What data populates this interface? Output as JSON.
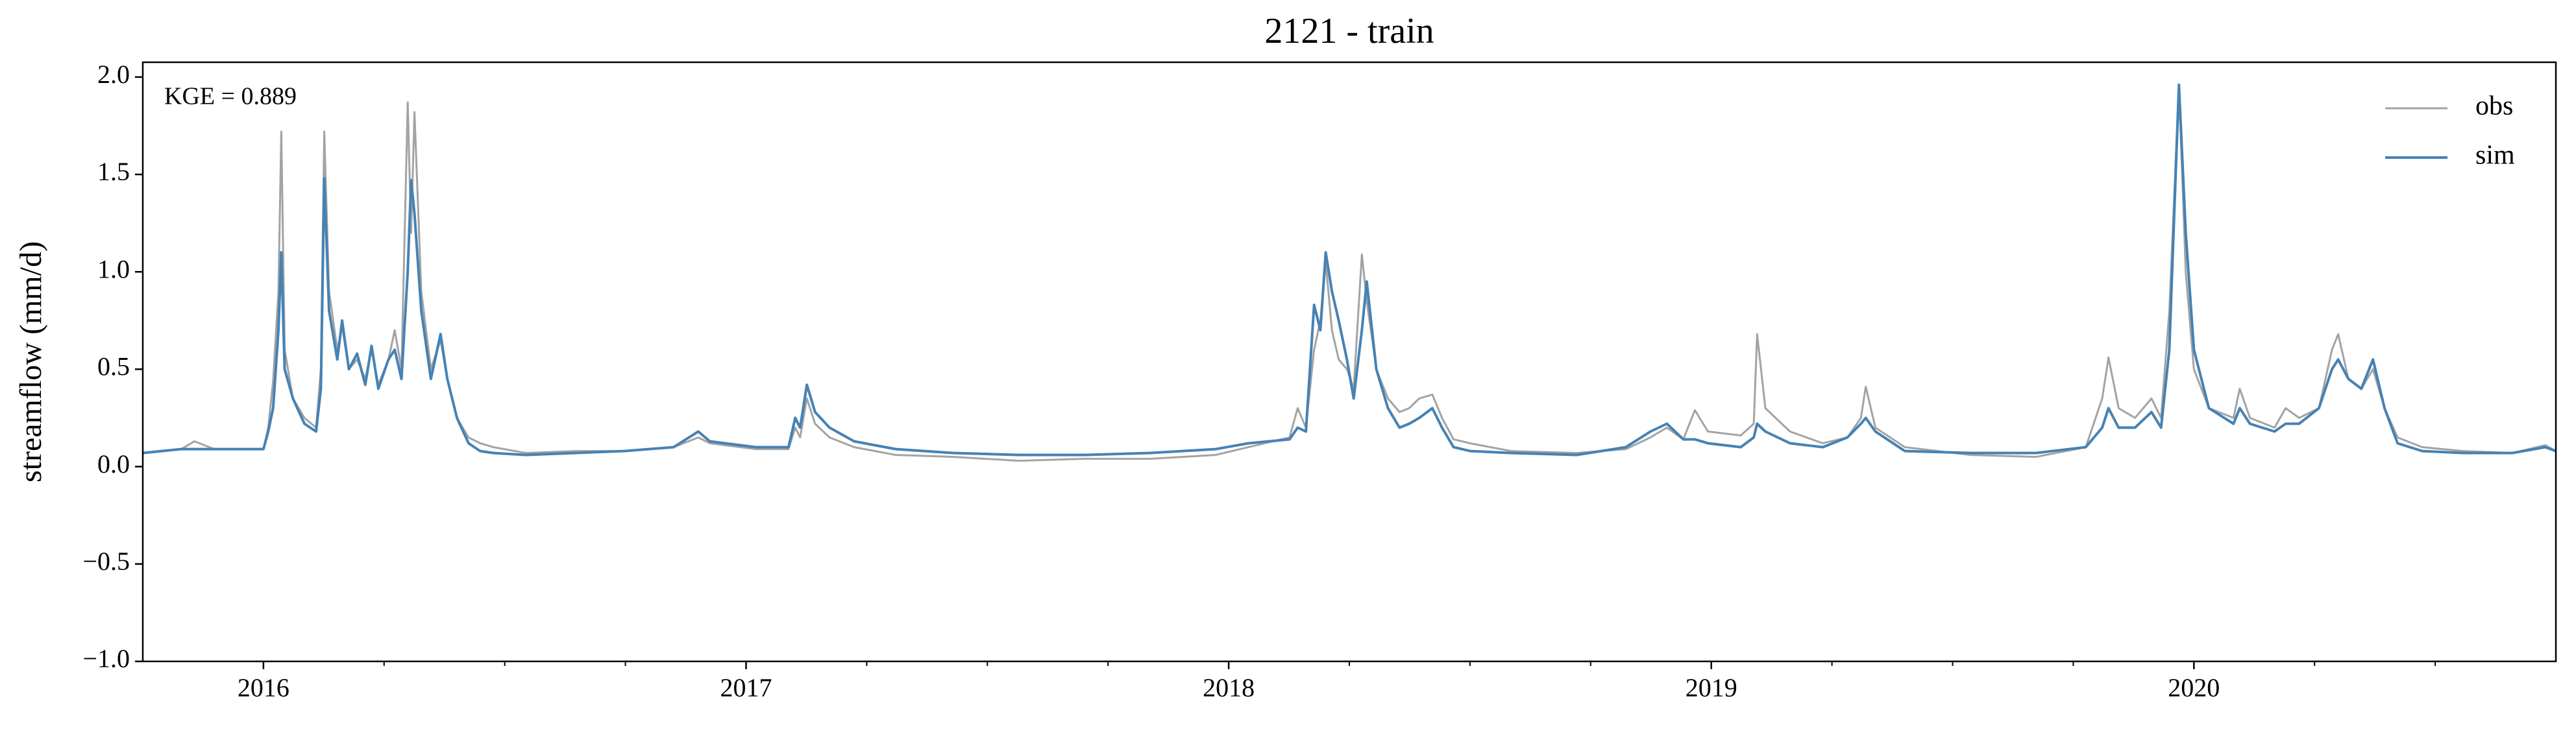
{
  "chart_data": {
    "type": "line",
    "title": "2121 - train",
    "ylabel": "streamflow (mm/d)",
    "annotation": "KGE = 0.889",
    "legend": "upper right",
    "grid": false,
    "xlim": [
      2015.75,
      2020.75
    ],
    "xticks": [
      2016,
      2017,
      2018,
      2019,
      2020
    ],
    "xminorticks": [
      2016.25,
      2016.5,
      2016.75,
      2017.25,
      2017.5,
      2017.75,
      2018.25,
      2018.5,
      2018.75,
      2019.25,
      2019.5,
      2019.75,
      2020.25,
      2020.5
    ],
    "ylim": [
      -1.0,
      2.076
    ],
    "yticks": [
      {
        "value": -1.0,
        "label": "−1.0"
      },
      {
        "value": -0.5,
        "label": "−0.5"
      },
      {
        "value": 0,
        "label": "0.0"
      },
      {
        "value": 0.5,
        "label": "0.5"
      },
      {
        "value": 1.0,
        "label": "1.0"
      },
      {
        "value": 1.5,
        "label": "1.5"
      },
      {
        "value": 2.0,
        "label": "2.0"
      }
    ],
    "x": [
      2015.75,
      2015.83,
      2015.857,
      2015.898,
      2015.966,
      2016.0,
      2016.01,
      2016.02,
      2016.031,
      2016.037,
      2016.044,
      2016.061,
      2016.085,
      2016.109,
      2016.119,
      2016.126,
      2016.136,
      2016.153,
      2016.163,
      2016.177,
      2016.194,
      2016.211,
      2016.224,
      2016.238,
      2016.259,
      2016.272,
      2016.286,
      2016.299,
      2016.306,
      2016.313,
      2016.327,
      2016.347,
      2016.367,
      2016.381,
      2016.401,
      2016.425,
      2016.449,
      2016.476,
      2016.544,
      2016.646,
      2016.748,
      2016.85,
      2016.901,
      2016.925,
      2017.02,
      2017.088,
      2017.102,
      2017.112,
      2017.126,
      2017.143,
      2017.173,
      2017.224,
      2017.31,
      2017.429,
      2017.565,
      2017.701,
      2017.837,
      2017.973,
      2018.041,
      2018.126,
      2018.143,
      2018.16,
      2018.177,
      2018.19,
      2018.201,
      2018.214,
      2018.228,
      2018.245,
      2018.259,
      2018.276,
      2018.286,
      2018.306,
      2018.33,
      2018.354,
      2018.374,
      2018.395,
      2018.422,
      2018.442,
      2018.466,
      2018.5,
      2018.585,
      2018.721,
      2018.823,
      2018.874,
      2018.908,
      2018.942,
      2018.966,
      2018.993,
      2019.061,
      2019.088,
      2019.095,
      2019.112,
      2019.163,
      2019.231,
      2019.282,
      2019.31,
      2019.32,
      2019.34,
      2019.401,
      2019.537,
      2019.673,
      2019.776,
      2019.81,
      2019.823,
      2019.844,
      2019.878,
      2019.912,
      2019.932,
      2019.949,
      2019.969,
      2019.983,
      2020.0,
      2020.031,
      2020.082,
      2020.095,
      2020.116,
      2020.167,
      2020.19,
      2020.218,
      2020.259,
      2020.286,
      2020.299,
      2020.32,
      2020.347,
      2020.371,
      2020.395,
      2020.422,
      2020.473,
      2020.558,
      2020.66,
      2020.728,
      2020.75
    ],
    "series": [
      {
        "name": "obs",
        "color": "#a3a3a3",
        "values": [
          0.07,
          0.09,
          0.13,
          0.09,
          0.09,
          0.09,
          0.2,
          0.44,
          0.9,
          1.72,
          0.6,
          0.35,
          0.25,
          0.2,
          0.5,
          1.72,
          0.9,
          0.6,
          0.72,
          0.5,
          0.55,
          0.45,
          0.6,
          0.42,
          0.55,
          0.7,
          0.5,
          1.87,
          1.2,
          1.82,
          0.9,
          0.5,
          0.65,
          0.45,
          0.25,
          0.15,
          0.12,
          0.1,
          0.07,
          0.08,
          0.08,
          0.1,
          0.15,
          0.12,
          0.09,
          0.09,
          0.2,
          0.15,
          0.35,
          0.22,
          0.15,
          0.1,
          0.06,
          0.05,
          0.03,
          0.04,
          0.04,
          0.06,
          0.1,
          0.15,
          0.3,
          0.2,
          0.6,
          0.75,
          1.05,
          0.7,
          0.55,
          0.5,
          0.4,
          1.09,
          0.85,
          0.5,
          0.35,
          0.28,
          0.3,
          0.35,
          0.37,
          0.25,
          0.14,
          0.12,
          0.08,
          0.07,
          0.09,
          0.15,
          0.2,
          0.14,
          0.29,
          0.18,
          0.16,
          0.22,
          0.68,
          0.3,
          0.18,
          0.12,
          0.15,
          0.25,
          0.41,
          0.2,
          0.1,
          0.06,
          0.05,
          0.1,
          0.35,
          0.56,
          0.3,
          0.25,
          0.35,
          0.25,
          0.8,
          1.96,
          1.0,
          0.5,
          0.3,
          0.25,
          0.4,
          0.25,
          0.2,
          0.3,
          0.25,
          0.3,
          0.6,
          0.68,
          0.45,
          0.4,
          0.5,
          0.3,
          0.15,
          0.1,
          0.08,
          0.07,
          0.11,
          0.08
        ]
      },
      {
        "name": "sim",
        "color": "#4682b4",
        "values": [
          0.07,
          0.09,
          0.09,
          0.09,
          0.09,
          0.09,
          0.18,
          0.3,
          0.7,
          1.1,
          0.5,
          0.35,
          0.22,
          0.18,
          0.4,
          1.48,
          0.8,
          0.55,
          0.75,
          0.5,
          0.58,
          0.42,
          0.62,
          0.4,
          0.55,
          0.6,
          0.45,
          1.0,
          1.47,
          1.3,
          0.8,
          0.45,
          0.68,
          0.45,
          0.25,
          0.12,
          0.08,
          0.07,
          0.06,
          0.07,
          0.08,
          0.1,
          0.18,
          0.13,
          0.1,
          0.1,
          0.25,
          0.2,
          0.42,
          0.28,
          0.2,
          0.13,
          0.09,
          0.07,
          0.06,
          0.06,
          0.07,
          0.09,
          0.12,
          0.14,
          0.2,
          0.18,
          0.83,
          0.7,
          1.1,
          0.9,
          0.75,
          0.55,
          0.35,
          0.7,
          0.95,
          0.5,
          0.3,
          0.2,
          0.22,
          0.25,
          0.3,
          0.2,
          0.1,
          0.08,
          0.07,
          0.06,
          0.1,
          0.18,
          0.22,
          0.14,
          0.14,
          0.12,
          0.1,
          0.15,
          0.22,
          0.18,
          0.12,
          0.1,
          0.15,
          0.22,
          0.25,
          0.18,
          0.08,
          0.07,
          0.07,
          0.1,
          0.2,
          0.3,
          0.2,
          0.2,
          0.28,
          0.2,
          0.6,
          1.96,
          1.2,
          0.6,
          0.3,
          0.22,
          0.3,
          0.22,
          0.18,
          0.22,
          0.22,
          0.3,
          0.5,
          0.55,
          0.45,
          0.4,
          0.55,
          0.3,
          0.12,
          0.08,
          0.07,
          0.07,
          0.1,
          0.08
        ]
      }
    ]
  }
}
